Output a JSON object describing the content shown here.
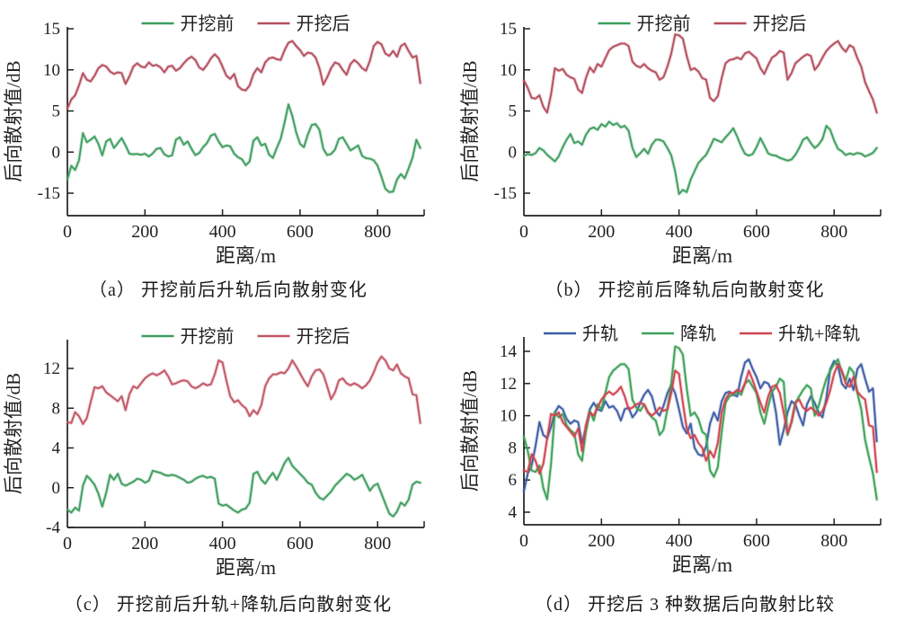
{
  "figure": {
    "xlabel": "距离/m",
    "ylabel": "后向散射值/dB"
  },
  "chart_data": [
    {
      "id": "a",
      "type": "line",
      "caption": "（a） 开挖前后升轨后向散射变化",
      "xlabel": "距离/m",
      "ylabel": "后向散射值/dB",
      "xlim": [
        0,
        920
      ],
      "x_start": 0,
      "x_step": 10,
      "x_ticks": [
        0,
        200,
        400,
        600,
        800
      ],
      "y_ticks": [
        15,
        10,
        5,
        0,
        -15
      ],
      "grid": false,
      "legend_position": "top",
      "series": [
        {
          "name": "开挖前",
          "color": "#3f9e5f",
          "values": [
            -10.0,
            -5.0,
            -6.5,
            -3.0,
            2.3,
            1.2,
            1.5,
            1.9,
            1.0,
            -1.2,
            1.3,
            1.6,
            0.5,
            1.1,
            1.7,
            0.8,
            -0.6,
            -0.8,
            -0.7,
            -1.0,
            -0.6,
            -1.6,
            -0.5,
            0.4,
            0.5,
            -0.8,
            -1.6,
            -1.2,
            1.5,
            1.8,
            0.9,
            1.3,
            0.4,
            -1.1,
            -0.3,
            0.6,
            1.1,
            2.0,
            2.2,
            1.3,
            0.6,
            0.8,
            0.7,
            -0.6,
            -1.9,
            -2.6,
            -4.8,
            -3.4,
            1.4,
            1.8,
            0.8,
            1.0,
            -0.9,
            -2.1,
            0.5,
            1.6,
            3.6,
            5.8,
            4.4,
            2.4,
            1.0,
            0.6,
            2.1,
            3.3,
            3.4,
            2.7,
            0.4,
            -1.1,
            -0.7,
            0.3,
            1.6,
            1.8,
            1.0,
            0.2,
            0.5,
            0.8,
            -1.4,
            -2.2,
            -2.4,
            -3.0,
            -5.0,
            -9.0,
            -13.4,
            -14.6,
            -14.4,
            -10.0,
            -8.0,
            -9.6,
            -6.0,
            -2.0,
            1.5,
            0.5
          ]
        },
        {
          "name": "开挖后",
          "color": "#b54d5e",
          "values": [
            5.3,
            6.4,
            6.9,
            8.1,
            9.6,
            8.8,
            8.6,
            9.3,
            10.2,
            10.6,
            10.4,
            9.8,
            9.5,
            9.7,
            9.6,
            8.3,
            9.2,
            10.4,
            10.8,
            10.4,
            10.3,
            10.9,
            10.5,
            10.6,
            10.3,
            9.7,
            10.4,
            10.5,
            9.9,
            10.2,
            10.8,
            11.3,
            11.6,
            11.2,
            10.3,
            10.0,
            10.6,
            11.4,
            11.9,
            11.4,
            10.4,
            9.3,
            8.9,
            9.5,
            8.0,
            7.6,
            7.5,
            8.1,
            9.5,
            10.2,
            9.7,
            10.9,
            11.4,
            11.5,
            11.3,
            11.2,
            12.4,
            13.3,
            13.5,
            12.9,
            12.4,
            11.7,
            12.1,
            12.0,
            11.5,
            10.2,
            8.2,
            9.1,
            10.2,
            10.9,
            10.7,
            10.0,
            9.4,
            10.7,
            11.2,
            10.8,
            10.2,
            9.9,
            11.1,
            12.9,
            13.4,
            13.1,
            12.0,
            11.7,
            12.3,
            11.6,
            12.9,
            13.2,
            12.3,
            11.5,
            11.7,
            8.4
          ]
        }
      ]
    },
    {
      "id": "b",
      "type": "line",
      "caption": "（b） 开挖前后降轨后向散射变化",
      "xlabel": "距离/m",
      "ylabel": "后向散射值/dB",
      "xlim": [
        0,
        920
      ],
      "x_start": 0,
      "x_step": 10,
      "x_ticks": [
        0,
        200,
        400,
        600,
        800
      ],
      "y_ticks": [
        15,
        10,
        5,
        0,
        -15
      ],
      "grid": false,
      "legend_position": "top",
      "series": [
        {
          "name": "开挖前",
          "color": "#3f9e5f",
          "values": [
            -1.5,
            -0.6,
            -1.1,
            -0.4,
            0.5,
            0.2,
            -1.0,
            -2.2,
            -3.4,
            -1.5,
            0.6,
            1.5,
            2.2,
            1.1,
            1.3,
            0.9,
            2.1,
            2.8,
            3.0,
            2.7,
            3.4,
            3.1,
            3.7,
            3.3,
            3.5,
            3.0,
            3.2,
            2.6,
            0.5,
            -1.8,
            -0.4,
            0.4,
            -0.6,
            0.9,
            1.5,
            1.5,
            1.3,
            0.5,
            -1.2,
            -7.0,
            -15.3,
            -13.8,
            -14.6,
            -10.0,
            -7.0,
            -4.0,
            -2.4,
            -1.0,
            0.6,
            1.6,
            1.4,
            1.2,
            1.8,
            2.3,
            2.9,
            1.9,
            0.7,
            -0.6,
            -1.3,
            -0.7,
            0.6,
            1.7,
            0.8,
            -0.5,
            -1.1,
            -1.3,
            -2.1,
            -2.6,
            -3.1,
            -2.7,
            -1.0,
            0.5,
            1.5,
            1.8,
            1.1,
            0.5,
            0.9,
            1.6,
            3.2,
            2.7,
            1.4,
            0.4,
            0.1,
            -1.1,
            -0.5,
            -0.9,
            -0.3,
            -0.6,
            -1.6,
            -1.0,
            -0.3,
            0.5
          ]
        },
        {
          "name": "开挖后",
          "color": "#b54d5e",
          "values": [
            8.7,
            7.8,
            6.6,
            6.5,
            6.9,
            5.5,
            4.8,
            7.0,
            10.2,
            9.9,
            10.1,
            9.4,
            9.1,
            8.9,
            7.6,
            7.2,
            9.0,
            10.3,
            9.7,
            10.7,
            10.4,
            11.4,
            12.4,
            12.8,
            13.0,
            13.2,
            13.2,
            12.9,
            11.0,
            10.5,
            10.3,
            10.7,
            10.2,
            9.9,
            9.7,
            8.8,
            9.1,
            10.4,
            12.0,
            14.3,
            14.2,
            13.8,
            11.7,
            10.0,
            10.2,
            9.8,
            9.0,
            8.8,
            6.6,
            6.2,
            6.8,
            9.0,
            10.8,
            11.2,
            11.3,
            11.5,
            11.3,
            12.0,
            12.2,
            11.8,
            11.4,
            10.2,
            9.5,
            10.6,
            11.5,
            11.8,
            12.3,
            12.1,
            8.8,
            9.6,
            10.8,
            11.2,
            11.6,
            11.9,
            11.7,
            10.0,
            10.6,
            11.5,
            12.3,
            12.8,
            13.2,
            13.5,
            12.7,
            12.2,
            13.0,
            12.7,
            11.4,
            10.4,
            8.5,
            7.4,
            6.4,
            4.8
          ]
        }
      ]
    },
    {
      "id": "c",
      "type": "line",
      "caption": "（c） 开挖前后升轨+降轨后向散射变化",
      "xlabel": "距离/m",
      "ylabel": "后向散射值/dB",
      "xlim": [
        0,
        920
      ],
      "x_start": 0,
      "x_step": 10,
      "x_ticks": [
        0,
        200,
        400,
        600,
        800
      ],
      "y_ticks": [
        12,
        8,
        4,
        0,
        -4
      ],
      "grid": false,
      "legend_position": "top",
      "series": [
        {
          "name": "开挖前",
          "color": "#3f9e5f",
          "values": [
            -2.2,
            -2.5,
            -2.0,
            -2.3,
            0.2,
            1.2,
            0.8,
            0.3,
            -0.6,
            -1.9,
            -0.5,
            1.3,
            0.8,
            1.4,
            0.4,
            0.2,
            0.4,
            0.6,
            0.9,
            0.8,
            0.5,
            0.7,
            1.7,
            1.6,
            1.5,
            1.3,
            1.2,
            1.3,
            1.2,
            1.0,
            0.8,
            0.5,
            0.6,
            0.9,
            1.1,
            1.2,
            1.0,
            1.1,
            0.9,
            -1.6,
            -1.8,
            -1.7,
            -2.0,
            -2.3,
            -2.5,
            -2.2,
            -2.1,
            -1.5,
            1.4,
            1.6,
            0.8,
            0.4,
            1.0,
            1.5,
            0.8,
            1.6,
            2.5,
            3.0,
            2.2,
            1.8,
            1.4,
            1.0,
            0.5,
            0.3,
            -0.5,
            -1.0,
            -1.2,
            -0.8,
            -0.4,
            0.2,
            0.6,
            1.0,
            1.4,
            1.2,
            0.8,
            1.0,
            1.3,
            0.5,
            -0.3,
            0.2,
            0.4,
            -0.6,
            -1.6,
            -2.6,
            -2.9,
            -2.4,
            -1.5,
            -1.8,
            -1.2,
            0.3,
            0.6,
            0.5
          ]
        },
        {
          "name": "开挖后",
          "color": "#c25666",
          "values": [
            6.6,
            6.5,
            7.6,
            7.2,
            6.4,
            7.0,
            8.6,
            10.1,
            10.0,
            10.2,
            9.6,
            9.3,
            9.0,
            8.7,
            9.2,
            7.8,
            9.4,
            10.2,
            10.0,
            10.5,
            11.0,
            11.3,
            11.5,
            11.3,
            11.5,
            11.8,
            11.2,
            10.4,
            10.5,
            10.7,
            10.8,
            10.7,
            10.2,
            10.0,
            10.2,
            10.5,
            10.3,
            10.4,
            11.4,
            12.8,
            12.6,
            10.8,
            9.2,
            8.6,
            8.8,
            8.3,
            8.0,
            7.2,
            7.8,
            7.4,
            8.3,
            10.2,
            11.0,
            11.4,
            11.4,
            11.6,
            11.5,
            12.0,
            12.8,
            12.2,
            11.5,
            10.8,
            10.2,
            11.2,
            11.8,
            11.9,
            11.4,
            10.2,
            8.9,
            9.6,
            10.8,
            11.0,
            10.5,
            10.3,
            10.5,
            10.3,
            10.0,
            10.3,
            10.8,
            11.6,
            12.6,
            13.2,
            12.8,
            12.0,
            11.8,
            12.4,
            11.5,
            11.2,
            11.0,
            9.4,
            9.3,
            6.5
          ]
        }
      ]
    },
    {
      "id": "d",
      "type": "line",
      "caption": "（d） 开挖后 3 种数据后向散射比较",
      "xlabel": "距离/m",
      "ylabel": "后向散射值/dB",
      "xlim": [
        0,
        920
      ],
      "x_start": 0,
      "x_step": 10,
      "x_ticks": [
        0,
        200,
        400,
        600,
        800
      ],
      "y_ticks": [
        14,
        12,
        10,
        8,
        6,
        4
      ],
      "grid": false,
      "legend_position": "top",
      "series": [
        {
          "name": "升轨",
          "color": "#3d5ca6",
          "values": [
            5.3,
            6.4,
            6.9,
            8.1,
            9.6,
            8.8,
            8.6,
            9.3,
            10.2,
            10.6,
            10.4,
            9.8,
            9.5,
            9.7,
            9.6,
            8.3,
            9.2,
            10.4,
            10.8,
            10.4,
            10.3,
            10.9,
            10.5,
            10.6,
            10.3,
            9.7,
            10.4,
            10.5,
            9.9,
            10.2,
            10.8,
            11.3,
            11.6,
            11.2,
            10.3,
            10.0,
            10.6,
            11.4,
            11.9,
            11.4,
            10.4,
            9.3,
            8.9,
            9.5,
            8.0,
            7.6,
            7.5,
            8.1,
            9.5,
            10.2,
            9.7,
            10.9,
            11.4,
            11.5,
            11.3,
            11.2,
            12.4,
            13.3,
            13.5,
            12.9,
            12.4,
            11.7,
            12.1,
            12.0,
            11.5,
            10.2,
            8.2,
            9.1,
            10.2,
            10.9,
            10.7,
            10.0,
            9.4,
            10.7,
            11.2,
            10.8,
            10.2,
            9.9,
            11.1,
            12.9,
            13.4,
            13.1,
            12.0,
            11.7,
            12.3,
            11.6,
            12.9,
            13.2,
            12.3,
            11.5,
            11.7,
            8.4
          ]
        },
        {
          "name": "降轨",
          "color": "#3da257",
          "values": [
            8.7,
            7.8,
            6.6,
            6.5,
            6.9,
            5.5,
            4.8,
            7.0,
            10.2,
            9.9,
            10.1,
            9.4,
            9.1,
            8.9,
            7.6,
            7.2,
            9.0,
            10.3,
            9.7,
            10.7,
            10.4,
            11.4,
            12.4,
            12.8,
            13.0,
            13.2,
            13.2,
            12.9,
            11.0,
            10.5,
            10.3,
            10.7,
            10.2,
            9.9,
            9.7,
            8.8,
            9.1,
            10.4,
            12.0,
            14.3,
            14.2,
            13.8,
            11.7,
            10.0,
            10.2,
            9.8,
            9.0,
            8.8,
            6.6,
            6.2,
            6.8,
            9.0,
            10.8,
            11.2,
            11.3,
            11.5,
            11.3,
            12.0,
            12.2,
            11.8,
            11.4,
            10.2,
            9.5,
            10.6,
            11.5,
            11.8,
            12.3,
            12.1,
            8.8,
            9.6,
            10.8,
            11.2,
            11.6,
            11.9,
            11.7,
            10.0,
            10.6,
            11.5,
            12.3,
            12.8,
            13.2,
            13.5,
            12.7,
            12.2,
            13.0,
            12.7,
            11.4,
            10.4,
            8.5,
            7.4,
            6.4,
            4.8
          ]
        },
        {
          "name": "升轨+降轨",
          "color": "#d0444f",
          "values": [
            6.6,
            6.5,
            7.6,
            7.2,
            6.4,
            7.0,
            8.6,
            10.1,
            10.0,
            10.2,
            9.6,
            9.3,
            9.0,
            8.7,
            9.2,
            7.8,
            9.4,
            10.2,
            10.0,
            10.5,
            11.0,
            11.3,
            11.5,
            11.3,
            11.5,
            11.8,
            11.2,
            10.4,
            10.5,
            10.7,
            10.8,
            10.7,
            10.2,
            10.0,
            10.2,
            10.5,
            10.3,
            10.4,
            11.4,
            12.8,
            12.6,
            10.8,
            9.2,
            8.6,
            8.8,
            8.3,
            8.0,
            7.2,
            7.8,
            7.4,
            8.3,
            10.2,
            11.0,
            11.4,
            11.4,
            11.6,
            11.5,
            12.0,
            12.8,
            12.2,
            11.5,
            10.8,
            10.2,
            11.2,
            11.8,
            11.9,
            11.4,
            10.2,
            8.9,
            9.6,
            10.8,
            11.0,
            10.5,
            10.3,
            10.5,
            10.3,
            10.0,
            10.3,
            10.8,
            11.6,
            12.6,
            13.2,
            12.8,
            12.0,
            11.8,
            12.4,
            11.5,
            11.2,
            11.0,
            9.4,
            9.3,
            6.5
          ]
        }
      ]
    }
  ]
}
